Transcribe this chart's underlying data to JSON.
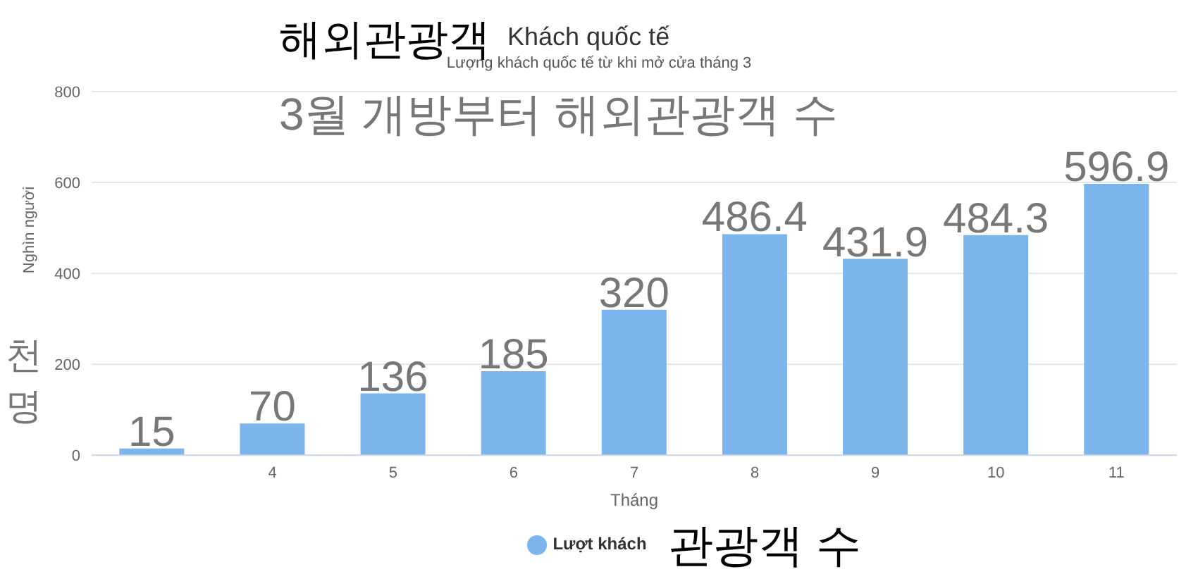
{
  "chart_data": {
    "type": "bar",
    "title": "Khách quốc tế",
    "subtitle": "Lượng khách quốc tế từ khi mở cửa tháng 3",
    "xlabel": "Tháng",
    "ylabel": "Nghìn người",
    "annotations": [
      "해외관광객",
      "3월 개방부터 해외관광객 수",
      "천명",
      "관광객 수"
    ],
    "categories": [
      null,
      "4",
      "5",
      "6",
      "7",
      "8",
      "9",
      "10",
      "11"
    ],
    "series": [
      {
        "name": "Lượt khách",
        "color": "#7cb5ec",
        "values": [
          15,
          70,
          136,
          185,
          320,
          486.4,
          431.9,
          484.3,
          596.9
        ]
      }
    ],
    "ylim": [
      0,
      800
    ],
    "yticks": [
      0,
      200,
      400,
      600,
      800
    ],
    "grid": "y",
    "legend": "bottom",
    "data_labels": true
  }
}
